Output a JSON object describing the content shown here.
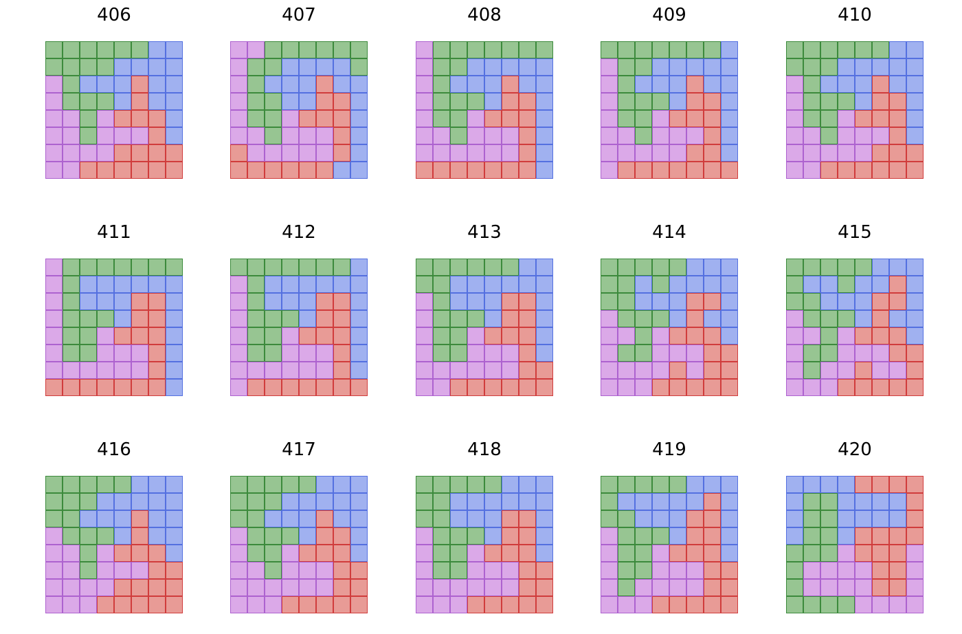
{
  "colors": {
    "G": {
      "fill": "#97c592",
      "stroke": "#3c8a3c"
    },
    "B": {
      "fill": "#a0b1f0",
      "stroke": "#5470e0"
    },
    "R": {
      "fill": "#e89b96",
      "stroke": "#d03c3c"
    },
    "P": {
      "fill": "#dba9e8",
      "stroke": "#ad62cf"
    }
  },
  "panels": [
    {
      "title": "406",
      "grid": [
        "GGGGGGBB",
        "GGGGBBBB",
        "PGBBBRBB",
        "PGGGBRBB",
        "PPGPRRRB",
        "PPGPPPRB",
        "PPPPRRRR",
        "PPRRRRRR"
      ]
    },
    {
      "title": "407",
      "grid": [
        "PPGGGGGG",
        "PGGBBBBG",
        "PGBBBRBB",
        "PGGBBRRB",
        "PGGPRRRB",
        "PPGPPPRB",
        "RPPPPPRB",
        "RRRRRRBB"
      ]
    },
    {
      "title": "408",
      "grid": [
        "PGGGGGGG",
        "PGGBBBBB",
        "PGBBBRBB",
        "PGGGBRRB",
        "PGGPRRRB",
        "PPGPPPRB",
        "PPPPPPRB",
        "RRRRRRRB"
      ]
    },
    {
      "title": "409",
      "grid": [
        "GGGGGGGB",
        "PGGBBBBB",
        "PGBBBRBB",
        "PGGGBRRB",
        "PGGPRRRB",
        "PPGPPPRB",
        "PPPPPRRB",
        "PRRRRRRR"
      ]
    },
    {
      "title": "410",
      "grid": [
        "GGGGGGBB",
        "GGGBBBBB",
        "PGBBBRBB",
        "PGGGBRRB",
        "PGGPRRRB",
        "PPGPPPRB",
        "PPPPPRRR",
        "PPRRRRRR"
      ]
    },
    {
      "title": "411",
      "grid": [
        "PGGGGGGG",
        "PGBBBBBB",
        "PGBBBRRB",
        "PGGGBRRB",
        "PGGPRRRB",
        "PGGPPPRB",
        "PPPPPPRB",
        "RRRRRRRB"
      ]
    },
    {
      "title": "412",
      "grid": [
        "GGGGGGGB",
        "PGBBBBBB",
        "PGBBBRRB",
        "PGGGBRRB",
        "PGGPRRRB",
        "PGGPPPRB",
        "PPPPPPRB",
        "PRRRRRRR"
      ]
    },
    {
      "title": "413",
      "grid": [
        "GGGGGGBB",
        "GGBBBBBB",
        "PGBBBRRB",
        "PGGGBRRB",
        "PGGPRRRB",
        "PGGPPPRB",
        "PPPPPPRR",
        "PPRRRRRR"
      ]
    },
    {
      "title": "414",
      "grid": [
        "GGGGGBBB",
        "GGBGBBBB",
        "GGBBBRRB",
        "PGGGBRBB",
        "PPGPRRRB",
        "PGGPPPRR",
        "PPPPRPRR",
        "PPPRRRRR"
      ]
    },
    {
      "title": "415",
      "grid": [
        "GGGGGBBB",
        "GBBGBBRB",
        "GGBBBRRB",
        "PGGGBRBB",
        "PPGPRRRB",
        "PGGPPPRR",
        "PGPPRPPR",
        "PPPRRRRR"
      ]
    },
    {
      "title": "416",
      "grid": [
        "GGGGGBBB",
        "GGGBBBBB",
        "GGBBBRBB",
        "PGGGBRBB",
        "PPGPRRRB",
        "PPGPPPRR",
        "PPPPRRRR",
        "PPPRRRRR"
      ]
    },
    {
      "title": "417",
      "grid": [
        "GGGGGBBB",
        "GGGBBBBB",
        "GGBBBRBB",
        "PGGGBRRB",
        "PGGPRRRB",
        "PPGPPPRR",
        "PPPPPPRR",
        "PPPRRRRR"
      ]
    },
    {
      "title": "418",
      "grid": [
        "GGGGGBBB",
        "GGBBBBBB",
        "GGBBBRRB",
        "PGGGBRRB",
        "PGGPRRRB",
        "PGGPPPRR",
        "PPPPPPRR",
        "PPPRRRRR"
      ]
    },
    {
      "title": "419",
      "grid": [
        "GGGGGBBB",
        "GBBBBBRB",
        "GGBBBRRB",
        "PGGGBRRB",
        "PGGPRRRB",
        "PGGPPPRR",
        "PGPPPPRR",
        "PPPRRRRR"
      ]
    },
    {
      "title": "420",
      "grid": [
        "BBBBRRRR",
        "BGGBBBBR",
        "BGGBBBBR",
        "BGGBRRRR",
        "GGGPRRRP",
        "GPPPPRRP",
        "GPPPPRRP",
        "GGGGPPPP"
      ]
    }
  ]
}
